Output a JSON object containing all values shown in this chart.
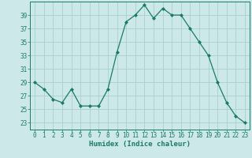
{
  "x": [
    0,
    1,
    2,
    3,
    4,
    5,
    6,
    7,
    8,
    9,
    10,
    11,
    12,
    13,
    14,
    15,
    16,
    17,
    18,
    19,
    20,
    21,
    22,
    23
  ],
  "y": [
    29,
    28,
    26.5,
    26,
    28,
    25.5,
    25.5,
    25.5,
    28,
    33.5,
    38,
    39,
    40.5,
    38.5,
    40,
    39,
    39,
    37,
    35,
    33,
    29,
    26,
    24,
    23
  ],
  "line_color": "#1a7a6a",
  "marker": "D",
  "marker_size": 2.0,
  "bg_color": "#cce8e8",
  "grid_color": "#aacfcf",
  "xlabel": "Humidex (Indice chaleur)",
  "yticks": [
    23,
    25,
    27,
    29,
    31,
    33,
    35,
    37,
    39
  ],
  "xticks": [
    0,
    1,
    2,
    3,
    4,
    5,
    6,
    7,
    8,
    9,
    10,
    11,
    12,
    13,
    14,
    15,
    16,
    17,
    18,
    19,
    20,
    21,
    22,
    23
  ],
  "ylim": [
    22.0,
    41.0
  ],
  "xlim": [
    -0.5,
    23.5
  ],
  "tick_color": "#1a7a6a",
  "label_fontsize": 6.5,
  "tick_fontsize": 5.5,
  "linewidth": 0.9
}
